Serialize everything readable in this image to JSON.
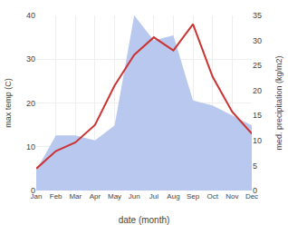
{
  "chart_data": {
    "type": "line",
    "xlabel": "date (month)",
    "ylabel": "max temp (C)",
    "y2label": "med. precipitation (kg/m2)",
    "categories": [
      "Jan",
      "Feb",
      "Mar",
      "Apr",
      "May",
      "Jun",
      "Jul",
      "Aug",
      "Sep",
      "Oct",
      "Nov",
      "Dec"
    ],
    "series": [
      {
        "type": "area",
        "axis": "y2",
        "color": "#b8c8ee",
        "values": [
          4,
          11,
          11,
          10,
          13,
          35,
          30,
          31,
          18,
          17,
          15,
          13
        ]
      },
      {
        "type": "line",
        "color": "#cc3333",
        "values": [
          5,
          9,
          11,
          15,
          24,
          31,
          35,
          32,
          38,
          26,
          18,
          13
        ]
      }
    ],
    "ylim": [
      0,
      40
    ],
    "yticks": [
      0,
      10,
      20,
      30,
      40
    ],
    "y2lim": [
      0,
      35
    ],
    "y2ticks": [
      0,
      5,
      10,
      15,
      20,
      25,
      30,
      35
    ],
    "grid": true
  }
}
